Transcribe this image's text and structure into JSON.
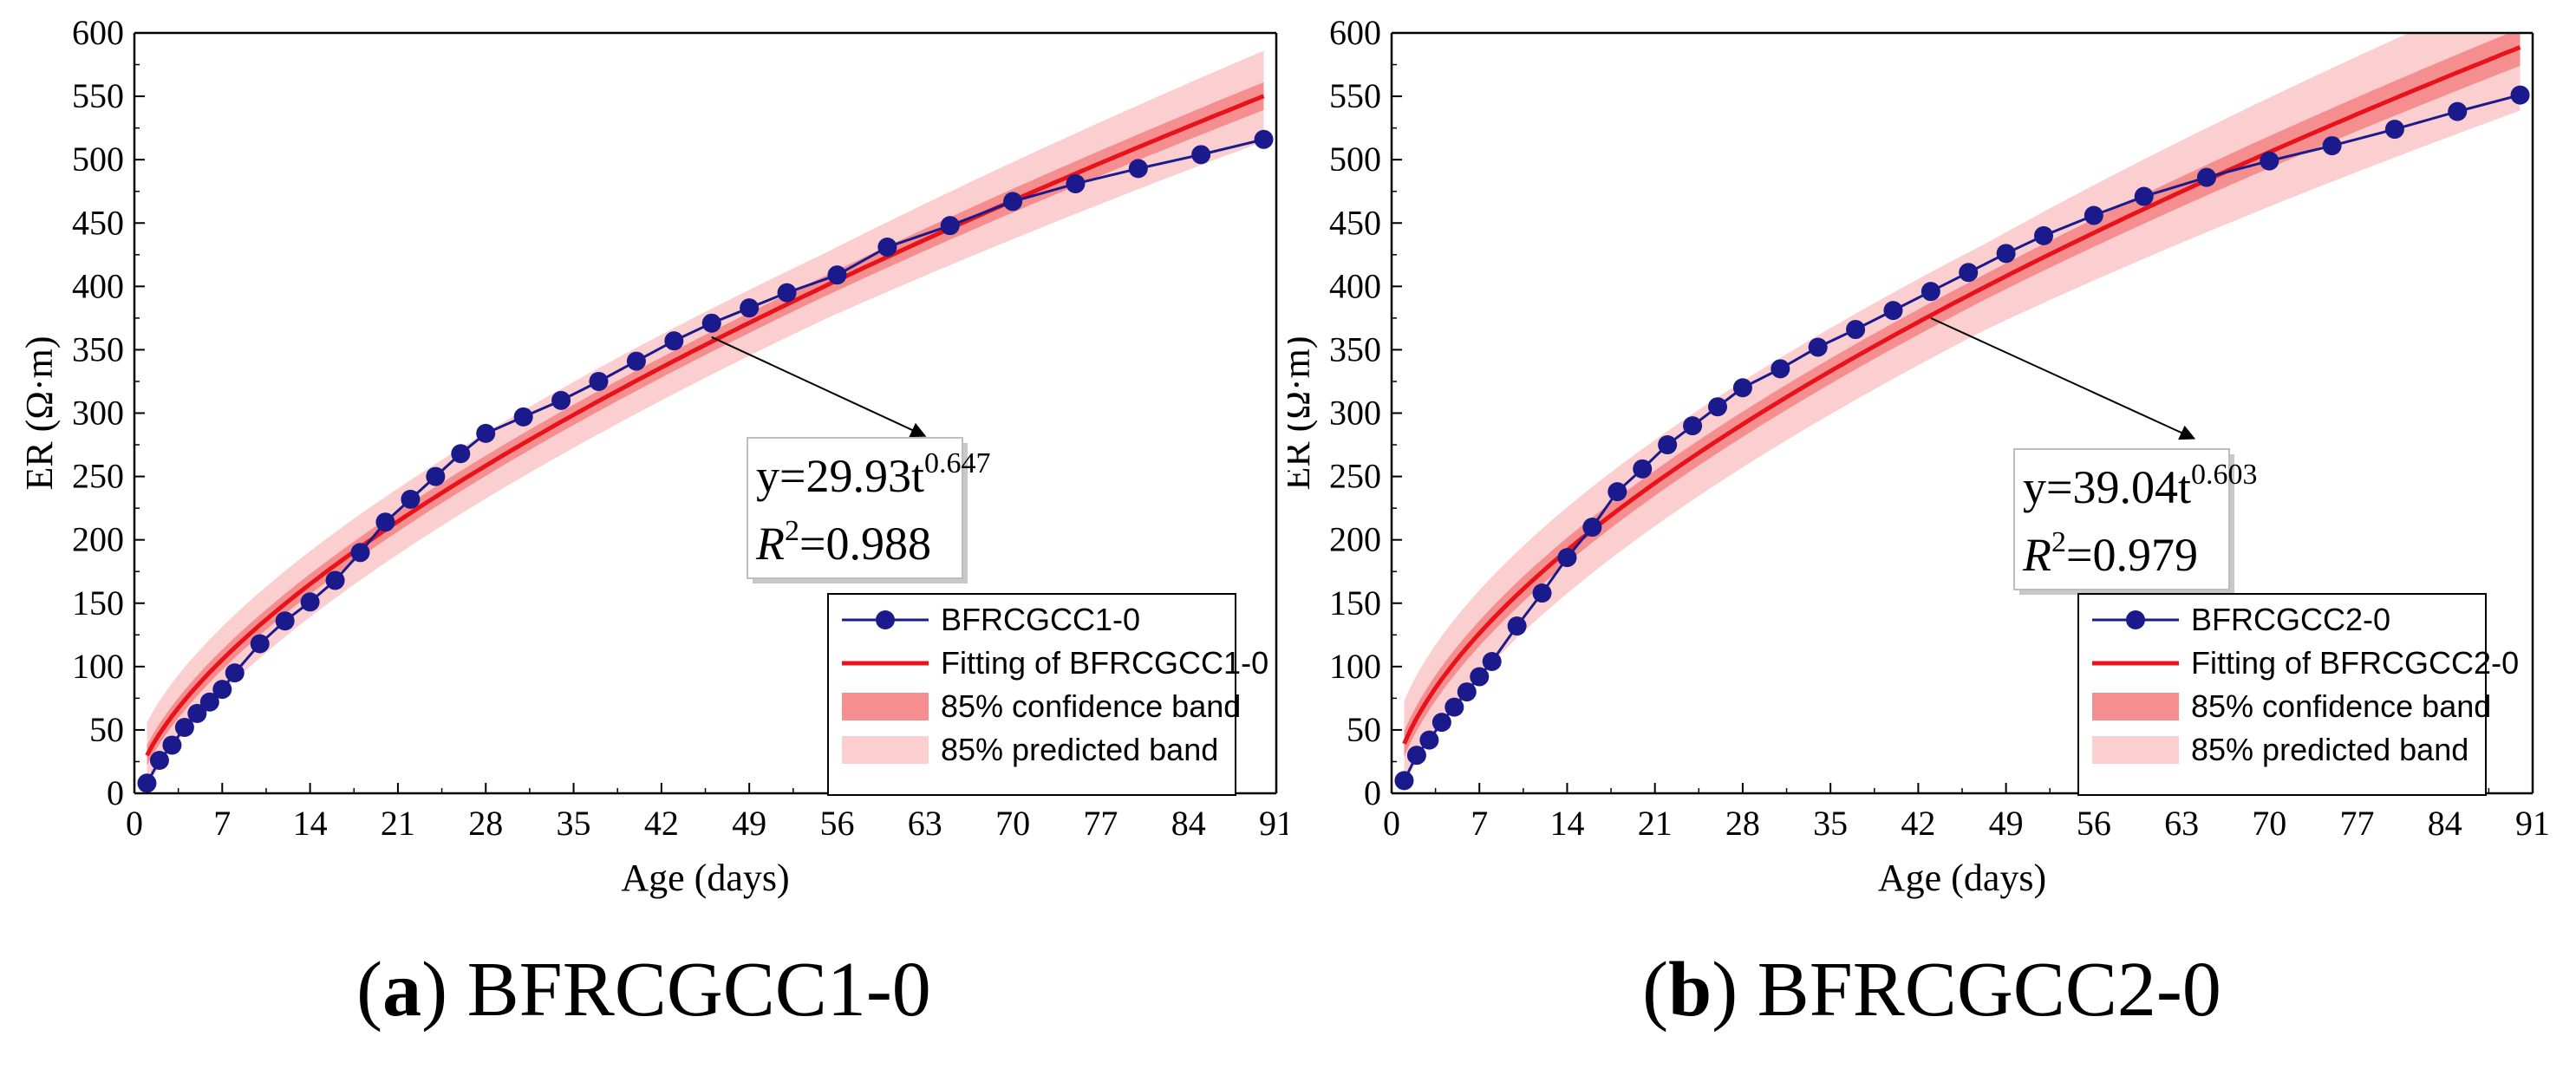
{
  "colors": {
    "series": "#1a1a8c",
    "fit": "#e8121a",
    "confidence_band": "#f58f8f",
    "predicted_band": "#fbcfcf"
  },
  "chart_data": [
    {
      "type": "line",
      "panel_label": "a",
      "caption": "BFRCGCC1-0",
      "xlabel": "Age (days)",
      "ylabel": "ER (Ω·m)",
      "xlim": [
        0,
        91
      ],
      "ylim": [
        0,
        600
      ],
      "xticks": [
        0,
        7,
        14,
        21,
        28,
        35,
        42,
        49,
        56,
        63,
        70,
        77,
        84,
        91
      ],
      "yticks": [
        0,
        50,
        100,
        150,
        200,
        250,
        300,
        350,
        400,
        450,
        500,
        550,
        600
      ],
      "series": [
        {
          "name": "BFRCGCC1-0",
          "x": [
            1,
            2,
            3,
            4,
            5,
            6,
            7,
            8,
            10,
            12,
            14,
            16,
            18,
            20,
            22,
            24,
            26,
            28,
            31,
            34,
            37,
            40,
            43,
            46,
            49,
            52,
            56,
            60,
            65,
            70,
            75,
            80,
            85,
            90
          ],
          "y": [
            8,
            26,
            38,
            52,
            63,
            72,
            82,
            95,
            118,
            136,
            151,
            168,
            190,
            214,
            232,
            250,
            268,
            284,
            297,
            310,
            325,
            341,
            357,
            371,
            383,
            395,
            409,
            431,
            448,
            467,
            481,
            493,
            504,
            516
          ]
        }
      ],
      "fit": {
        "name": "Fitting of BFRCGCC1-0",
        "a": 29.93,
        "b": 0.647,
        "x_start": 1,
        "x_end": 90,
        "confidence_halfwidth_frac": 0.02,
        "predicted_halfwidth_frac": 0.065
      },
      "legend": [
        "BFRCGCC1-0",
        "Fitting of BFRCGCC1-0",
        "85% confidence band",
        "85% predicted band"
      ],
      "equation": {
        "prefix": "y=29.93t",
        "exponent": "0.647",
        "r2_symbol": "R",
        "r2_power": "2",
        "r2_value": "=0.988"
      },
      "annotation_arrow": {
        "from": [
          46,
          360
        ],
        "to": [
          63,
          282
        ]
      }
    },
    {
      "type": "line",
      "panel_label": "b",
      "caption": "BFRCGCC2-0",
      "xlabel": "Age (days)",
      "ylabel": "ER (Ω·m)",
      "xlim": [
        0,
        91
      ],
      "ylim": [
        0,
        600
      ],
      "xticks": [
        0,
        7,
        14,
        21,
        28,
        35,
        42,
        49,
        56,
        63,
        70,
        77,
        84,
        91
      ],
      "yticks": [
        0,
        50,
        100,
        150,
        200,
        250,
        300,
        350,
        400,
        450,
        500,
        550,
        600
      ],
      "series": [
        {
          "name": "BFRCGCC2-0",
          "x": [
            1,
            2,
            3,
            4,
            5,
            6,
            7,
            8,
            10,
            12,
            14,
            16,
            18,
            20,
            22,
            24,
            26,
            28,
            31,
            34,
            37,
            40,
            43,
            46,
            49,
            52,
            56,
            60,
            65,
            70,
            75,
            80,
            85,
            90
          ],
          "y": [
            10,
            30,
            42,
            56,
            68,
            80,
            92,
            104,
            132,
            158,
            186,
            210,
            238,
            256,
            275,
            290,
            305,
            320,
            335,
            352,
            366,
            381,
            396,
            411,
            426,
            440,
            456,
            471,
            486,
            499,
            511,
            524,
            538,
            551
          ]
        }
      ],
      "fit": {
        "name": "Fitting of BFRCGCC2-0",
        "a": 39.04,
        "b": 0.603,
        "x_start": 1,
        "x_end": 90,
        "confidence_halfwidth_frac": 0.025,
        "predicted_halfwidth_frac": 0.085
      },
      "legend": [
        "BFRCGCC2-0",
        "Fitting of BFRCGCC2-0",
        "85% confidence band",
        "85% predicted band"
      ],
      "equation": {
        "prefix": "y=39.04t",
        "exponent": "0.603",
        "r2_symbol": "R",
        "r2_power": "2",
        "r2_value": "=0.979"
      },
      "annotation_arrow": {
        "from": [
          43,
          375
        ],
        "to": [
          64,
          280
        ]
      }
    }
  ]
}
